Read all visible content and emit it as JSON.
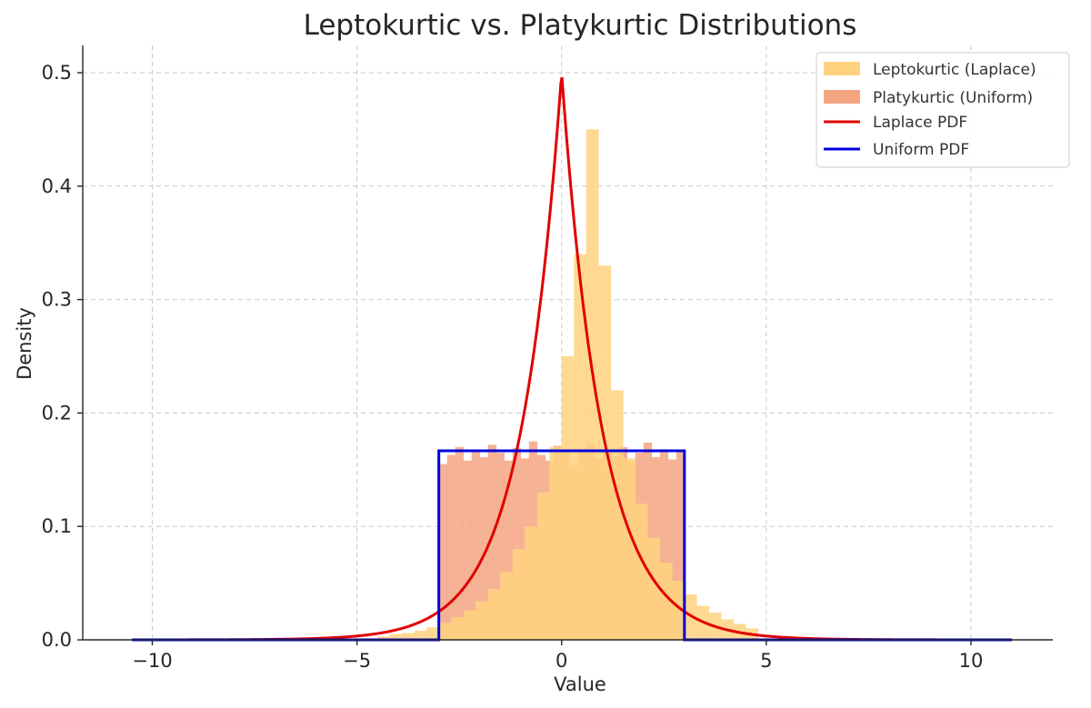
{
  "chart_data": {
    "type": "bar",
    "title": "Leptokurtic vs. Platykurtic Distributions",
    "xlabel": "Value",
    "ylabel": "Density",
    "xlim": [
      -11.7,
      12
    ],
    "ylim": [
      0,
      0.5
    ],
    "grid": true,
    "legend_position": "top-right",
    "x_ticks": [
      -10,
      -5,
      0,
      5,
      10
    ],
    "x_tick_labels": [
      "−10",
      "−5",
      "0",
      "5",
      "10"
    ],
    "y_ticks": [
      0.0,
      0.1,
      0.2,
      0.3,
      0.4,
      0.5
    ],
    "y_tick_labels": [
      "0.0",
      "0.1",
      "0.2",
      "0.3",
      "0.4",
      "0.5"
    ],
    "series": [
      {
        "name": "Leptokurtic (Laplace)",
        "kind": "histogram",
        "color": "#ffd27f",
        "bin_start": -4.5,
        "bin_width": 0.3,
        "densities": [
          0.003,
          0.005,
          0.006,
          0.008,
          0.011,
          0.015,
          0.02,
          0.026,
          0.034,
          0.045,
          0.06,
          0.08,
          0.1,
          0.13,
          0.17,
          0.25,
          0.34,
          0.45,
          0.33,
          0.22,
          0.16,
          0.12,
          0.09,
          0.068,
          0.052,
          0.04,
          0.03,
          0.024,
          0.018,
          0.014,
          0.01
        ]
      },
      {
        "name": "Platykurtic (Uniform)",
        "kind": "histogram",
        "color": "#f4a582",
        "bin_start": -3.0,
        "bin_width": 0.2,
        "densities": [
          0.155,
          0.163,
          0.17,
          0.158,
          0.166,
          0.161,
          0.172,
          0.165,
          0.158,
          0.169,
          0.16,
          0.175,
          0.163,
          0.158,
          0.171,
          0.166,
          0.154,
          0.168,
          0.173,
          0.16,
          0.167,
          0.162,
          0.17,
          0.157,
          0.165,
          0.174,
          0.161,
          0.168,
          0.159,
          0.166
        ]
      },
      {
        "name": "Laplace PDF",
        "kind": "line",
        "color": "#e00000",
        "x_min": -10.5,
        "x_max": 11,
        "loc": 0,
        "scale": 1,
        "peak": 0.5
      },
      {
        "name": "Uniform PDF",
        "kind": "line",
        "color": "#0000dd",
        "x_min": -10.5,
        "x_max": 11,
        "low": -3,
        "high": 3,
        "height": 0.1667
      }
    ]
  }
}
